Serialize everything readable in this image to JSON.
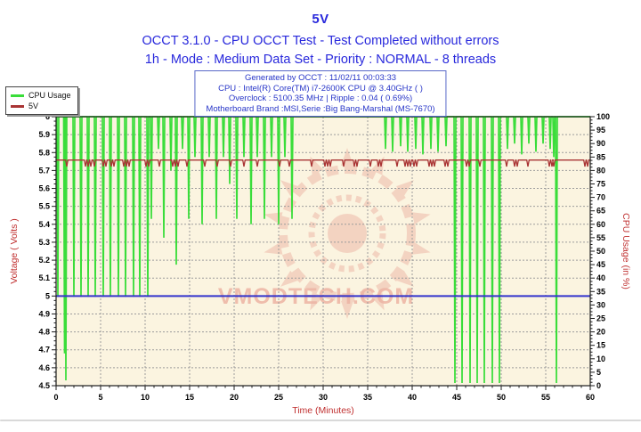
{
  "header": {
    "title": "5V",
    "line2": "OCCT 3.1.0 - CPU OCCT Test - Test Completed without errors",
    "line3": "1h - Mode : Medium Data Set - Priority : NORMAL - 8 threads",
    "text_color": "#2828DC"
  },
  "info_box": {
    "lines": [
      "Generated by OCCT : 11/02/11 00:03:33",
      "CPU : Intel(R) Core(TM) i7-2600K CPU @ 3.40GHz (  )",
      "Overclock : 5100.35 MHz | Ripple : 0.04 ( 0.69%)",
      "Motherboard Brand :MSI,Serie :Big Bang-Marshal (MS-7670)"
    ],
    "text_color": "#2836C8",
    "border_color": "#5868C8"
  },
  "legend": {
    "items": [
      {
        "label": "CPU Usage",
        "color": "#3ADD3A"
      },
      {
        "label": "5V",
        "color": "#A93434"
      }
    ]
  },
  "watermark": {
    "text": "VMODTECH.COM",
    "color": "#EDB4A4"
  },
  "chart_data": {
    "type": "line",
    "title": "5V",
    "xlabel": "Time (Minutes)",
    "ylabel_left": "Voltage ( Volts )",
    "ylabel_right": "CPU Usage (in %)",
    "x_range": [
      0,
      60
    ],
    "x_major": 5,
    "x_minor": 1,
    "left_range": [
      4.5,
      6.0
    ],
    "left_major": 0.1,
    "right_range": [
      0,
      100
    ],
    "right_major": 5,
    "grid": true,
    "legend_position": "top-left",
    "plot_bg": "#FBF4E0",
    "grid_color": "#9C9C9C",
    "axis_title_color": "#C03030",
    "tick_label_color": "#000000",
    "series": [
      {
        "name": "CPU Usage",
        "axis": "right",
        "color": "#3ADD3A",
        "baseline": 100,
        "spike_halfwidth_min": 0.1,
        "spikes": [
          [
            0.2,
            33
          ],
          [
            0.95,
            12
          ],
          [
            1.1,
            2
          ],
          [
            2.0,
            33
          ],
          [
            2.8,
            33
          ],
          [
            3.6,
            33
          ],
          [
            4.4,
            33
          ],
          [
            5.3,
            33
          ],
          [
            6.1,
            33
          ],
          [
            7.0,
            33
          ],
          [
            7.8,
            33
          ],
          [
            8.7,
            33
          ],
          [
            9.4,
            33
          ],
          [
            10.3,
            33
          ],
          [
            10.7,
            62
          ],
          [
            11.5,
            88
          ],
          [
            12.1,
            55
          ],
          [
            12.9,
            80
          ],
          [
            13.5,
            45
          ],
          [
            14.2,
            88
          ],
          [
            14.9,
            62
          ],
          [
            15.6,
            85
          ],
          [
            16.4,
            60
          ],
          [
            17.2,
            85
          ],
          [
            18.0,
            62
          ],
          [
            18.8,
            85
          ],
          [
            19.5,
            75
          ],
          [
            20.3,
            62
          ],
          [
            21.1,
            85
          ],
          [
            21.9,
            60
          ],
          [
            22.6,
            85
          ],
          [
            23.4,
            62
          ],
          [
            24.2,
            85
          ],
          [
            25.0,
            60
          ],
          [
            25.7,
            85
          ],
          [
            26.5,
            62
          ],
          [
            37.0,
            88
          ],
          [
            37.8,
            87
          ],
          [
            38.7,
            89
          ],
          [
            39.5,
            87
          ],
          [
            40.4,
            88
          ],
          [
            41.2,
            86
          ],
          [
            42.1,
            88
          ],
          [
            42.9,
            87
          ],
          [
            43.8,
            89
          ],
          [
            44.8,
            1
          ],
          [
            45.6,
            1
          ],
          [
            46.5,
            1
          ],
          [
            47.3,
            1
          ],
          [
            48.1,
            1
          ],
          [
            49.0,
            1
          ],
          [
            49.8,
            1
          ],
          [
            50.7,
            88
          ],
          [
            51.5,
            90
          ],
          [
            52.3,
            86
          ],
          [
            53.1,
            90
          ],
          [
            53.9,
            87
          ],
          [
            54.7,
            90
          ],
          [
            55.5,
            88
          ],
          [
            55.9,
            85
          ],
          [
            56.2,
            1
          ]
        ]
      },
      {
        "name": "5V",
        "axis": "left",
        "color": "#A93434",
        "baseline": 5.758,
        "dip_value": 5.722,
        "dip_halfwidth_min": 0.13,
        "dips": [
          1.2,
          3.3,
          3.6,
          3.9,
          4.3,
          5.3,
          5.6,
          6.2,
          6.5,
          7.6,
          7.9,
          8.2,
          10.1,
          10.4,
          11.6,
          13.1,
          13.4,
          13.7,
          14.7,
          16.7,
          18.1,
          19.6,
          21.1,
          22.6,
          25.1,
          26.2,
          28.7,
          30.2,
          30.5,
          30.8,
          32.3,
          33.5,
          33.8,
          35.3,
          36.2,
          36.5,
          38.3,
          39.2,
          39.5,
          39.8,
          40.2,
          40.5,
          41.9,
          42.2,
          42.5,
          43.7,
          44.0,
          46.1,
          46.4,
          47.6,
          50.6,
          51.5,
          51.8,
          53.0,
          55.4,
          55.7,
          55.9,
          59.4,
          59.7
        ]
      },
      {
        "name": "5V nominal reference",
        "axis": "left",
        "color": "#3333CC",
        "type": "reference",
        "value": 5.0
      }
    ]
  }
}
